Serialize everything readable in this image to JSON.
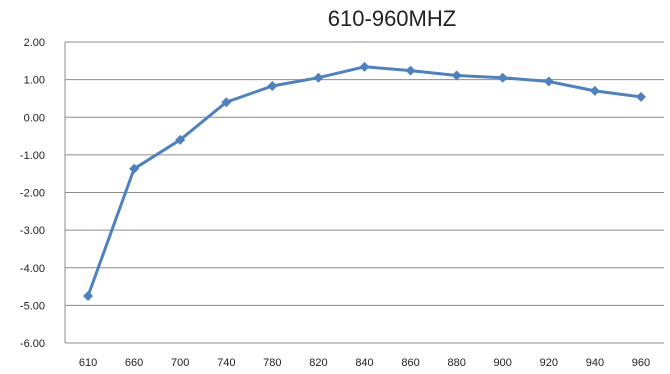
{
  "chart_data": {
    "type": "line",
    "title": "610-960MHZ",
    "xlabel": "",
    "ylabel": "",
    "categories": [
      "610",
      "660",
      "700",
      "740",
      "780",
      "820",
      "840",
      "860",
      "880",
      "900",
      "920",
      "940",
      "960"
    ],
    "series": [
      {
        "values": [
          -4.75,
          -1.37,
          -0.6,
          0.4,
          0.83,
          1.05,
          1.34,
          1.24,
          1.11,
          1.05,
          0.95,
          0.7,
          0.54
        ],
        "color": "#4f81bd",
        "marker": "diamond"
      }
    ],
    "ylim": [
      -6,
      2
    ],
    "yticks": [
      "2.00",
      "1.00",
      "0.00",
      "-1.00",
      "-2.00",
      "-3.00",
      "-4.00",
      "-5.00",
      "-6.00"
    ],
    "grid": true,
    "legend": "none"
  }
}
